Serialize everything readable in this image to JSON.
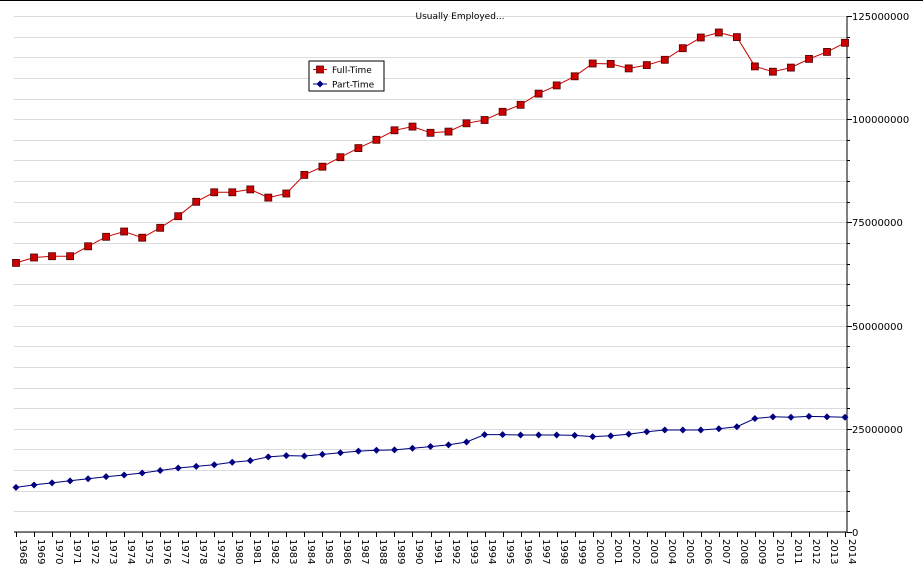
{
  "chart_data": {
    "type": "line",
    "title": "Usually Employed...",
    "xlabel": "",
    "ylabel": "",
    "ylim": [
      0,
      125000000
    ],
    "ytick_labels": [
      "0",
      "25000000",
      "50000000",
      "75000000",
      "100000000",
      "125000000"
    ],
    "yticks": [
      0,
      25000000,
      50000000,
      75000000,
      100000000,
      125000000
    ],
    "y_axis_side": "right",
    "grid": true,
    "legend_position": "top-left",
    "categories": [
      "1968",
      "1969",
      "1970",
      "1971",
      "1972",
      "1973",
      "1974",
      "1975",
      "1976",
      "1977",
      "1978",
      "1979",
      "1980",
      "1981",
      "1982",
      "1983",
      "1984",
      "1985",
      "1986",
      "1987",
      "1988",
      "1989",
      "1990",
      "1991",
      "1992",
      "1993",
      "1994",
      "1995",
      "1996",
      "1997",
      "1998",
      "1999",
      "2000",
      "2001",
      "2002",
      "2003",
      "2004",
      "2005",
      "2006",
      "2007",
      "2008",
      "2009",
      "2010",
      "2011",
      "2012",
      "2013",
      "2014"
    ],
    "series": [
      {
        "name": "Full-Time",
        "color": "#cc0000",
        "marker": "square",
        "values": [
          65200000,
          66500000,
          66800000,
          66800000,
          69200000,
          71500000,
          72800000,
          71300000,
          73700000,
          76500000,
          80000000,
          82300000,
          82300000,
          83000000,
          81000000,
          82000000,
          86500000,
          88500000,
          90800000,
          93000000,
          95000000,
          97300000,
          98200000,
          96700000,
          97000000,
          99000000,
          99800000,
          101800000,
          103500000,
          106200000,
          108200000,
          110400000,
          113500000,
          113400000,
          112300000,
          113100000,
          114400000,
          117200000,
          119800000,
          121000000,
          119900000,
          112800000,
          111500000,
          112500000,
          114600000,
          116300000,
          118500000
        ]
      },
      {
        "name": "Part-Time",
        "color": "#000080",
        "marker": "diamond",
        "values": [
          10800000,
          11400000,
          11900000,
          12400000,
          12900000,
          13400000,
          13800000,
          14300000,
          14900000,
          15500000,
          15900000,
          16300000,
          16900000,
          17300000,
          18200000,
          18500000,
          18400000,
          18800000,
          19200000,
          19600000,
          19800000,
          19900000,
          20300000,
          20700000,
          21100000,
          21800000,
          23600000,
          23600000,
          23500000,
          23500000,
          23500000,
          23400000,
          23100000,
          23300000,
          23700000,
          24300000,
          24700000,
          24700000,
          24700000,
          25000000,
          25500000,
          27500000,
          27900000,
          27800000,
          28000000,
          27900000,
          27800000
        ]
      }
    ]
  }
}
